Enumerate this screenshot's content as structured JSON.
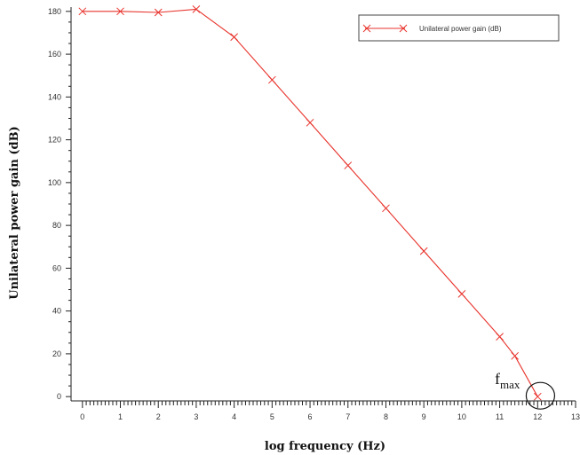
{
  "chart_data": {
    "type": "line",
    "title": "",
    "xlabel": "log frequency (Hz)",
    "ylabel": "Unilateral power gain (dB)",
    "xlim": [
      -0.3,
      13
    ],
    "ylim": [
      -2,
      182
    ],
    "x_ticks": [
      0,
      1,
      2,
      3,
      4,
      5,
      6,
      7,
      8,
      9,
      10,
      11,
      12,
      13
    ],
    "y_ticks": [
      0,
      20,
      40,
      60,
      80,
      100,
      120,
      140,
      160,
      180
    ],
    "grid": false,
    "legend": {
      "position": "top-right"
    },
    "series": [
      {
        "name": "Unilateral power gain (dB)",
        "color": "#e8332c",
        "marker": "x",
        "x": [
          0,
          1,
          2,
          3,
          4,
          5,
          6,
          7,
          8,
          9,
          10,
          11,
          11.4,
          12
        ],
        "y": [
          180,
          180,
          179.5,
          181,
          168,
          148,
          128,
          108,
          88,
          68,
          48,
          28,
          19,
          0
        ]
      }
    ],
    "annotations": [
      {
        "text": "f",
        "subscript": "max",
        "x": 12.05,
        "y": 0,
        "marker": "circle"
      }
    ]
  }
}
